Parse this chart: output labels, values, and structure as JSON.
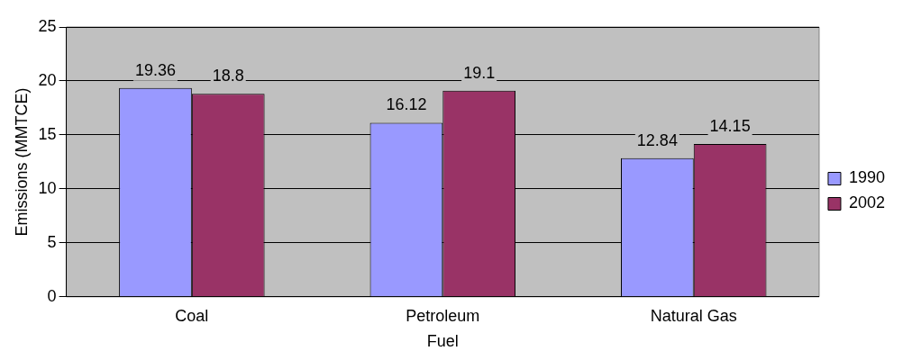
{
  "chart_data": {
    "type": "bar",
    "xlabel": "Fuel",
    "ylabel": "Emissions (MMTCE)",
    "categories": [
      "Coal",
      "Petroleum",
      "Natural Gas"
    ],
    "series": [
      {
        "name": "1990",
        "color": "#9999ff",
        "values": [
          19.36,
          16.12,
          12.84
        ]
      },
      {
        "name": "2002",
        "color": "#993366",
        "values": [
          18.8,
          19.1,
          14.15
        ]
      }
    ],
    "ylim": [
      0,
      25
    ],
    "yticks": [
      0,
      5,
      10,
      15,
      20,
      25
    ],
    "grid": "y",
    "legend": "right",
    "data_labels": true
  }
}
